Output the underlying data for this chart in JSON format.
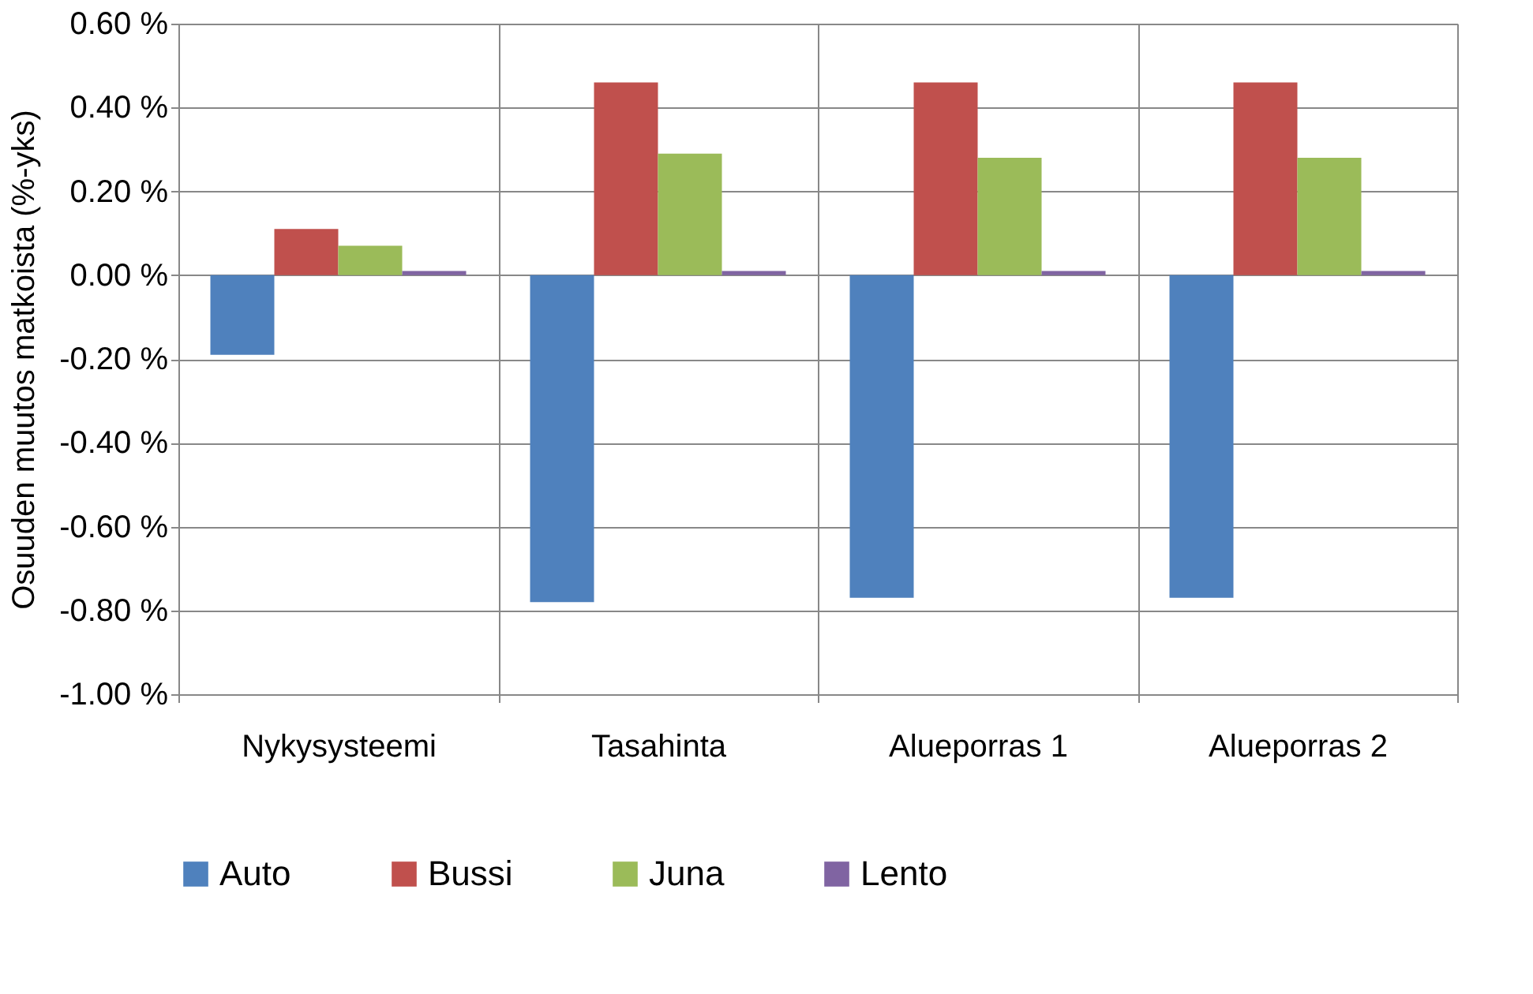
{
  "chart_data": {
    "type": "bar",
    "ylabel": "Osuuden muutos matkoista (%-yks)",
    "categories": [
      "Nykysysteemi",
      "Tasahinta",
      "Alueporras 1",
      "Alueporras 2"
    ],
    "series": [
      {
        "name": "Auto",
        "color": "#4f81bd",
        "values": [
          -0.19,
          -0.78,
          -0.77,
          -0.77
        ]
      },
      {
        "name": "Bussi",
        "color": "#c0504d",
        "values": [
          0.11,
          0.46,
          0.46,
          0.46
        ]
      },
      {
        "name": "Juna",
        "color": "#9bbb59",
        "values": [
          0.07,
          0.29,
          0.28,
          0.28
        ]
      },
      {
        "name": "Lento",
        "color": "#8064a2",
        "values": [
          0.01,
          0.01,
          0.01,
          0.01
        ]
      }
    ],
    "ylim": [
      -1.0,
      0.6
    ],
    "yticks": [
      {
        "value": -1.0,
        "label": "-1.00 %"
      },
      {
        "value": -0.8,
        "label": "-0.80 %"
      },
      {
        "value": -0.6,
        "label": "-0.60 %"
      },
      {
        "value": -0.4,
        "label": "-0.40 %"
      },
      {
        "value": -0.2,
        "label": "-0.20 %"
      },
      {
        "value": 0.0,
        "label": "0.00 %"
      },
      {
        "value": 0.2,
        "label": "0.20 %"
      },
      {
        "value": 0.4,
        "label": "0.40 %"
      },
      {
        "value": 0.6,
        "label": "0.60 %"
      }
    ],
    "grid": true,
    "legend": "bottom"
  }
}
